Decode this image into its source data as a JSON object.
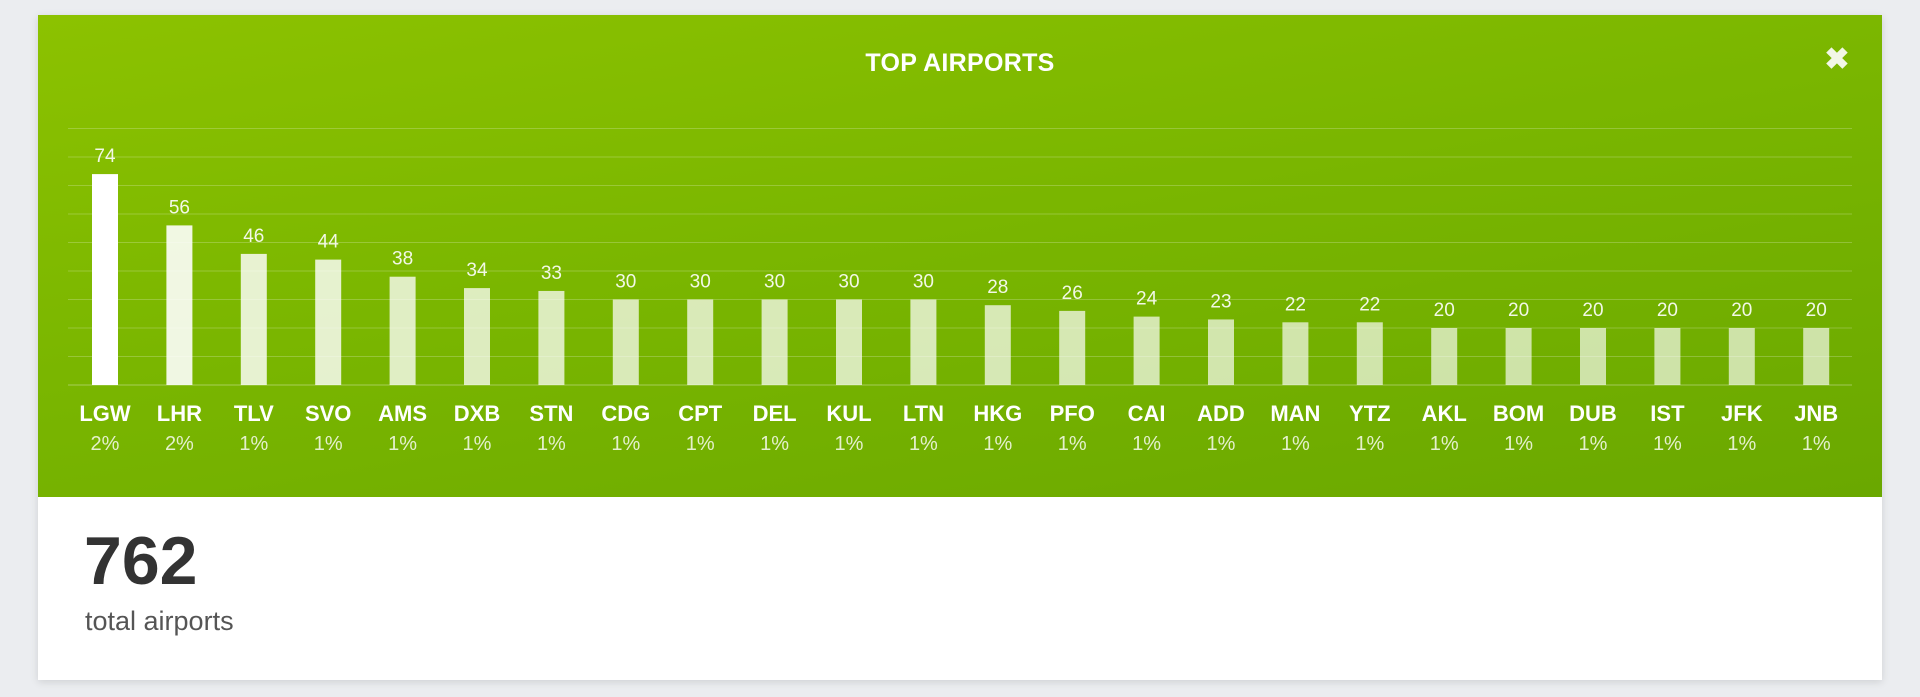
{
  "chart_data": {
    "type": "bar",
    "title": "TOP AIRPORTS",
    "xlabel": "",
    "ylabel": "",
    "ylim": [
      0,
      90
    ],
    "grid": true,
    "categories": [
      "LGW",
      "LHR",
      "TLV",
      "SVO",
      "AMS",
      "DXB",
      "STN",
      "CDG",
      "CPT",
      "DEL",
      "KUL",
      "LTN",
      "HKG",
      "PFO",
      "CAI",
      "ADD",
      "MAN",
      "YTZ",
      "AKL",
      "BOM",
      "DUB",
      "IST",
      "JFK",
      "JNB"
    ],
    "values": [
      74,
      56,
      46,
      44,
      38,
      34,
      33,
      30,
      30,
      30,
      30,
      30,
      28,
      26,
      24,
      23,
      22,
      22,
      20,
      20,
      20,
      20,
      20,
      20
    ],
    "percentages": [
      "2%",
      "2%",
      "1%",
      "1%",
      "1%",
      "1%",
      "1%",
      "1%",
      "1%",
      "1%",
      "1%",
      "1%",
      "1%",
      "1%",
      "1%",
      "1%",
      "1%",
      "1%",
      "1%",
      "1%",
      "1%",
      "1%",
      "1%",
      "1%"
    ],
    "bar_color": "#ffffff",
    "background_color": "#7ab600"
  },
  "close_icon": "close-icon",
  "summary": {
    "value": "762",
    "label": "total airports"
  }
}
